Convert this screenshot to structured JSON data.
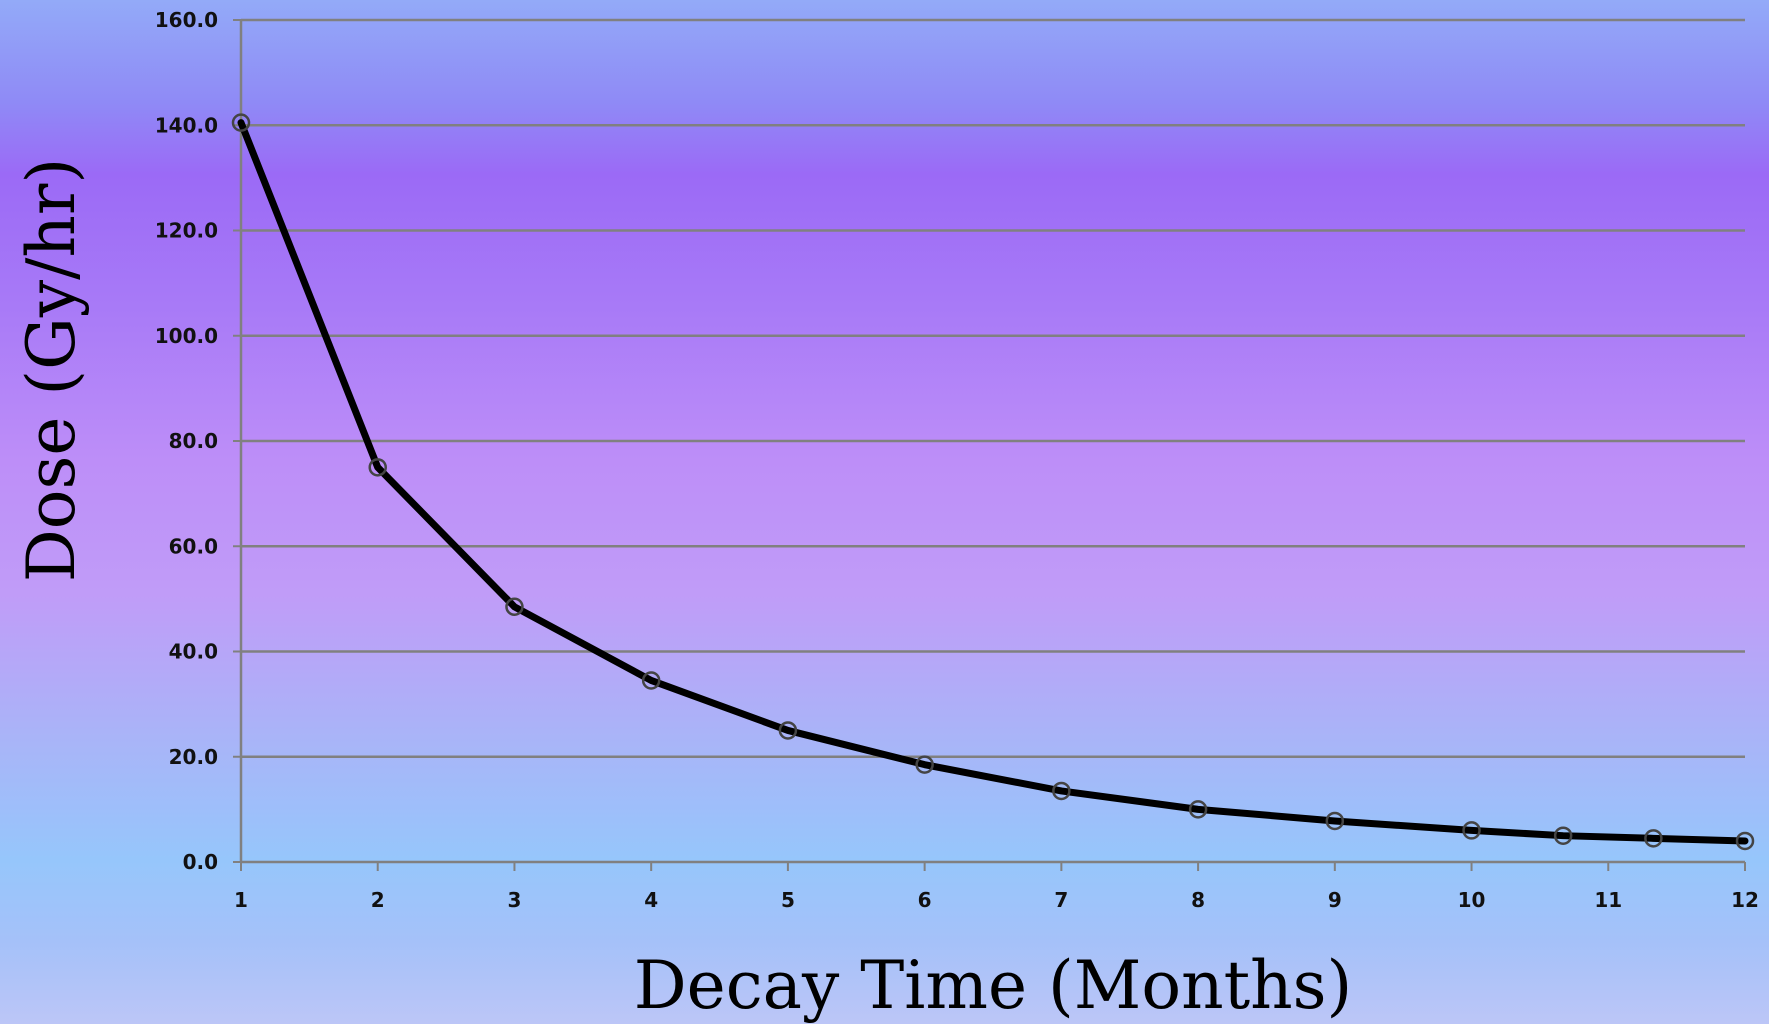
{
  "chart_data": {
    "type": "line",
    "title": "",
    "xlabel": "Decay Time (Months)",
    "ylabel": "Dose (Gy/hr)",
    "ylim": [
      0,
      160
    ],
    "xlim": [
      1,
      12
    ],
    "y_ticks": [
      "0.0",
      "20.0",
      "40.0",
      "60.0",
      "80.0",
      "100.0",
      "120.0",
      "140.0",
      "160.0"
    ],
    "x_ticks": [
      "1",
      "2",
      "3",
      "4",
      "5",
      "6",
      "7",
      "8",
      "9",
      "10",
      "11",
      "12"
    ],
    "grid": true,
    "legend": "none",
    "colors": {
      "line": "#000000",
      "marker": "#444444",
      "grid": "#808080",
      "axis": "#808080"
    },
    "series": [
      {
        "x": [
          1,
          2,
          3,
          4,
          5,
          6,
          7,
          8,
          9,
          10,
          10.67,
          11.33,
          12
        ],
        "values": [
          140.5,
          75.0,
          48.5,
          34.5,
          25.0,
          18.5,
          13.5,
          10.0,
          7.8,
          6.0,
          5.0,
          4.5,
          4.0
        ]
      }
    ]
  }
}
